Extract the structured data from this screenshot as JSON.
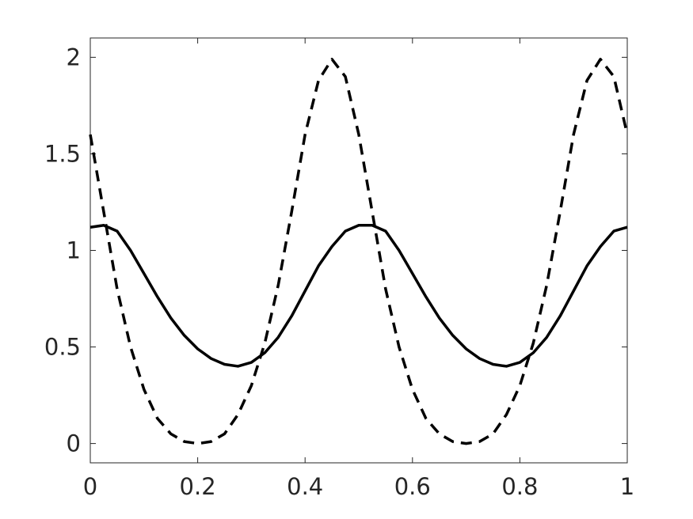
{
  "chart_data": {
    "type": "line",
    "x": [
      0,
      0.025,
      0.05,
      0.075,
      0.1,
      0.125,
      0.15,
      0.175,
      0.2,
      0.225,
      0.25,
      0.275,
      0.3,
      0.325,
      0.35,
      0.375,
      0.4,
      0.425,
      0.45,
      0.475,
      0.5,
      0.525,
      0.55,
      0.575,
      0.6,
      0.625,
      0.65,
      0.675,
      0.7,
      0.725,
      0.75,
      0.775,
      0.8,
      0.825,
      0.85,
      0.875,
      0.9,
      0.925,
      0.95,
      0.975,
      1
    ],
    "series": [
      {
        "color": "#000000",
        "line_style": "solid",
        "values": [
          1.12,
          1.13,
          1.1,
          1.0,
          0.88,
          0.76,
          0.65,
          0.56,
          0.49,
          0.44,
          0.41,
          0.4,
          0.42,
          0.47,
          0.55,
          0.66,
          0.79,
          0.92,
          1.02,
          1.1,
          1.13,
          1.13,
          1.1,
          1.0,
          0.88,
          0.76,
          0.65,
          0.56,
          0.49,
          0.44,
          0.41,
          0.4,
          0.42,
          0.47,
          0.55,
          0.66,
          0.79,
          0.92,
          1.02,
          1.1,
          1.12
        ]
      },
      {
        "color": "#000000",
        "line_style": "dashed",
        "values": [
          1.6,
          1.2,
          0.8,
          0.5,
          0.28,
          0.13,
          0.05,
          0.01,
          0.0,
          0.01,
          0.05,
          0.15,
          0.3,
          0.52,
          0.82,
          1.2,
          1.6,
          1.88,
          1.99,
          1.9,
          1.6,
          1.2,
          0.8,
          0.5,
          0.28,
          0.13,
          0.05,
          0.01,
          0.0,
          0.01,
          0.05,
          0.15,
          0.3,
          0.52,
          0.82,
          1.2,
          1.6,
          1.88,
          1.99,
          1.9,
          1.6
        ]
      }
    ],
    "xlim": [
      0,
      1
    ],
    "xticks": [
      0,
      0.2,
      0.4,
      0.6,
      0.8,
      1
    ],
    "ylim": [
      -0.1,
      2.1
    ],
    "yticks": [
      0,
      0.5,
      1,
      1.5,
      2
    ],
    "grid": false
  }
}
